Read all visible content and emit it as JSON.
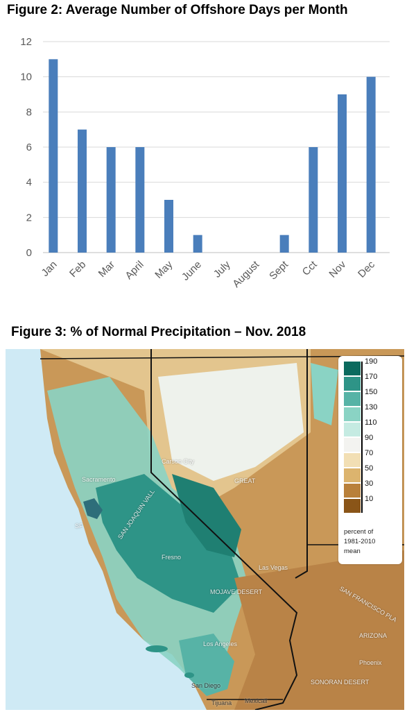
{
  "figure2": {
    "title": "Figure 2: Average Number of Offshore Days per Month"
  },
  "figure3": {
    "title": "Figure 3: % of Normal Precipitation – Nov. 2018",
    "legend": {
      "values": [
        "190",
        "170",
        "150",
        "130",
        "110",
        "90",
        "70",
        "50",
        "30",
        "10"
      ],
      "colors": [
        "#0b6a5e",
        "#2e9487",
        "#57b3a6",
        "#8ad3c4",
        "#c5ebe2",
        "#f3f3f0",
        "#f2dfb4",
        "#dcb46e",
        "#b9803a",
        "#8a5518"
      ],
      "note_line1": "percent of",
      "note_line2": "1981-2010",
      "note_line3": "mean"
    },
    "labels": {
      "sacramento": "Sacramento",
      "carson_city": "Carson City",
      "fresno": "Fresno",
      "los_angeles": "Los Angeles",
      "san_diego": "San Diego",
      "tijuana": "Tijuana",
      "mexicali": "Mexicali",
      "las_vegas": "Las Vegas",
      "phoenix": "Phoenix",
      "sonoran_desert": "SONORAN DESERT",
      "san_joaquin": "SAN JOAQUIN VALL",
      "great": "GREAT",
      "mojave": "MOJAVE DESERT",
      "colorado_plateau": "SAN FRANCISCO PLA",
      "arizona": "ARIZONA",
      "sf": "SF"
    }
  },
  "chart_data": {
    "type": "bar",
    "title": "Figure 2: Average Number of Offshore Days per Month",
    "categories": [
      "Jan",
      "Feb",
      "Mar",
      "April",
      "May",
      "June",
      "July",
      "August",
      "Sept",
      "Cct",
      "Nov",
      "Dec"
    ],
    "values": [
      11,
      7,
      6,
      6,
      3,
      1,
      0,
      0,
      1,
      6,
      9,
      10
    ],
    "ylim": [
      0,
      12
    ],
    "yticks": [
      "0",
      "2",
      "4",
      "6",
      "8",
      "10",
      "12"
    ],
    "xlabel": "",
    "ylabel": "",
    "grid": true,
    "bar_color": "#4a7ebb",
    "grid_color": "#d9d9d9"
  }
}
